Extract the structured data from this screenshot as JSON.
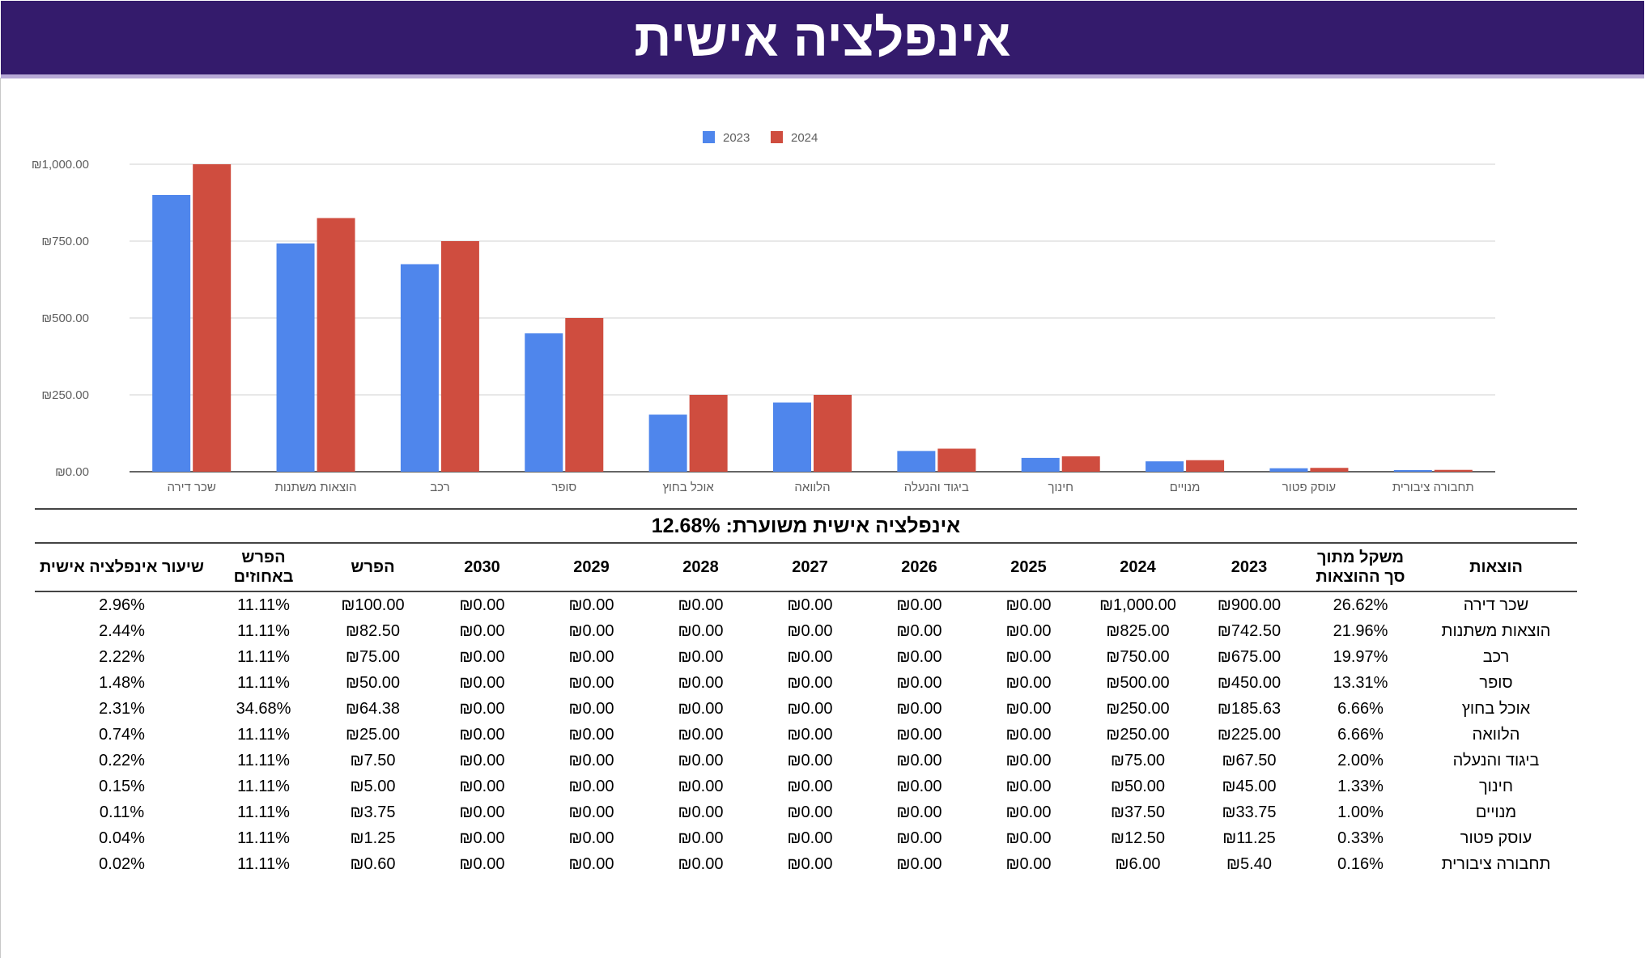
{
  "header": {
    "title": "אינפלציה אישית"
  },
  "chart_data": {
    "type": "bar",
    "categories": [
      "שכר דירה",
      "הוצאות משתנות",
      "רכב",
      "סופר",
      "אוכל בחוץ",
      "הלוואה",
      "ביגוד והנעלה",
      "חינוך",
      "מנויים",
      "עוסק פטור",
      "תחבורה ציבורית"
    ],
    "series": [
      {
        "name": "2023",
        "color": "#4f86ec",
        "values": [
          900,
          742.5,
          675,
          450,
          185.63,
          225,
          67.5,
          45,
          33.75,
          11.25,
          5.4
        ]
      },
      {
        "name": "2024",
        "color": "#cf4d3f",
        "values": [
          1000,
          825,
          750,
          500,
          250,
          250,
          75,
          50,
          37.5,
          12.5,
          6
        ]
      }
    ],
    "ylim": [
      0,
      1000
    ],
    "yticks": [
      0,
      250,
      500,
      750,
      1000
    ],
    "ytick_labels": [
      "₪0.00",
      "₪250.00",
      "₪500.00",
      "₪750.00",
      "₪1,000.00"
    ],
    "legend": "top-center",
    "grid": true
  },
  "summary": {
    "text": "אינפלציה אישית משוערת: 12.68%"
  },
  "table": {
    "headers": [
      "הוצאות",
      "משקל מתוך\nסך ההוצאות",
      "2023",
      "2024",
      "2025",
      "2026",
      "2027",
      "2028",
      "2029",
      "2030",
      "הפרש",
      "הפרש\nבאחוזים",
      "שיעור אינפלציה אישית"
    ],
    "rows": [
      [
        "שכר דירה",
        "26.62%",
        "₪900.00",
        "₪1,000.00",
        "₪0.00",
        "₪0.00",
        "₪0.00",
        "₪0.00",
        "₪0.00",
        "₪0.00",
        "₪100.00",
        "11.11%",
        "2.96%"
      ],
      [
        "הוצאות משתנות",
        "21.96%",
        "₪742.50",
        "₪825.00",
        "₪0.00",
        "₪0.00",
        "₪0.00",
        "₪0.00",
        "₪0.00",
        "₪0.00",
        "₪82.50",
        "11.11%",
        "2.44%"
      ],
      [
        "רכב",
        "19.97%",
        "₪675.00",
        "₪750.00",
        "₪0.00",
        "₪0.00",
        "₪0.00",
        "₪0.00",
        "₪0.00",
        "₪0.00",
        "₪75.00",
        "11.11%",
        "2.22%"
      ],
      [
        "סופר",
        "13.31%",
        "₪450.00",
        "₪500.00",
        "₪0.00",
        "₪0.00",
        "₪0.00",
        "₪0.00",
        "₪0.00",
        "₪0.00",
        "₪50.00",
        "11.11%",
        "1.48%"
      ],
      [
        "אוכל בחוץ",
        "6.66%",
        "₪185.63",
        "₪250.00",
        "₪0.00",
        "₪0.00",
        "₪0.00",
        "₪0.00",
        "₪0.00",
        "₪0.00",
        "₪64.38",
        "34.68%",
        "2.31%"
      ],
      [
        "הלוואה",
        "6.66%",
        "₪225.00",
        "₪250.00",
        "₪0.00",
        "₪0.00",
        "₪0.00",
        "₪0.00",
        "₪0.00",
        "₪0.00",
        "₪25.00",
        "11.11%",
        "0.74%"
      ],
      [
        "ביגוד והנעלה",
        "2.00%",
        "₪67.50",
        "₪75.00",
        "₪0.00",
        "₪0.00",
        "₪0.00",
        "₪0.00",
        "₪0.00",
        "₪0.00",
        "₪7.50",
        "11.11%",
        "0.22%"
      ],
      [
        "חינוך",
        "1.33%",
        "₪45.00",
        "₪50.00",
        "₪0.00",
        "₪0.00",
        "₪0.00",
        "₪0.00",
        "₪0.00",
        "₪0.00",
        "₪5.00",
        "11.11%",
        "0.15%"
      ],
      [
        "מנויים",
        "1.00%",
        "₪33.75",
        "₪37.50",
        "₪0.00",
        "₪0.00",
        "₪0.00",
        "₪0.00",
        "₪0.00",
        "₪0.00",
        "₪3.75",
        "11.11%",
        "0.11%"
      ],
      [
        "עוסק פטור",
        "0.33%",
        "₪11.25",
        "₪12.50",
        "₪0.00",
        "₪0.00",
        "₪0.00",
        "₪0.00",
        "₪0.00",
        "₪0.00",
        "₪1.25",
        "11.11%",
        "0.04%"
      ],
      [
        "תחבורה ציבורית",
        "0.16%",
        "₪5.40",
        "₪6.00",
        "₪0.00",
        "₪0.00",
        "₪0.00",
        "₪0.00",
        "₪0.00",
        "₪0.00",
        "₪0.60",
        "11.11%",
        "0.02%"
      ]
    ]
  }
}
